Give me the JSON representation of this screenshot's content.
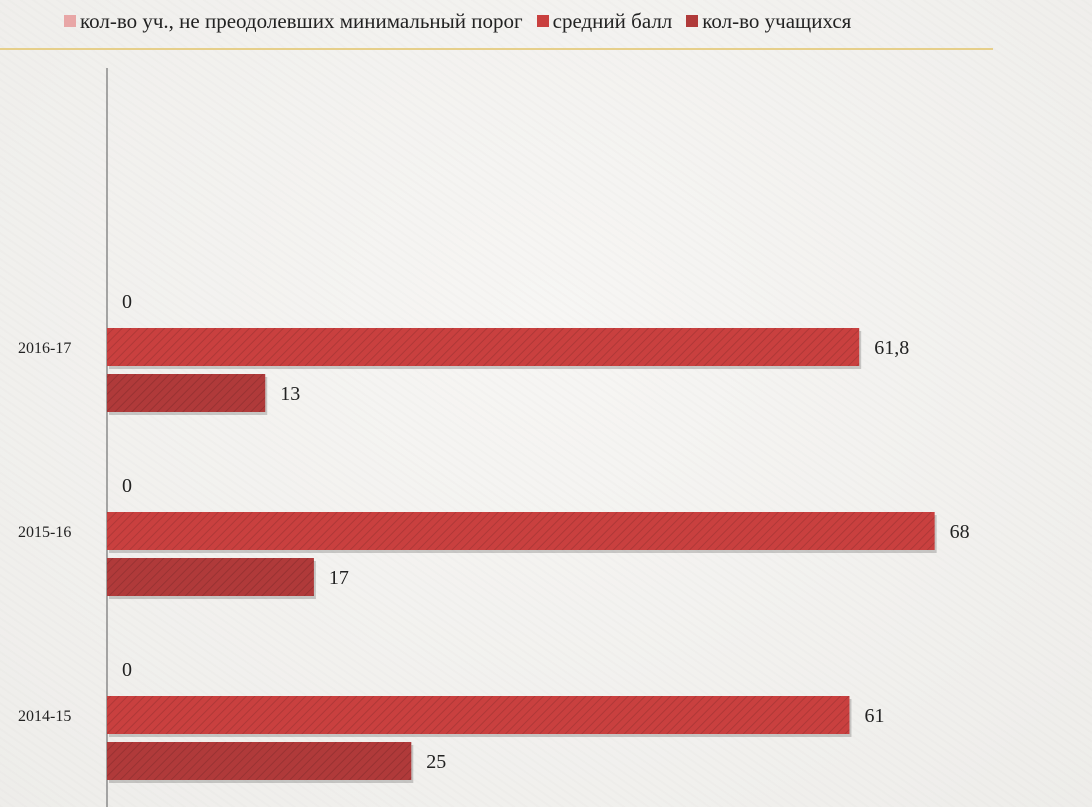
{
  "chart_data": {
    "type": "bar",
    "orientation": "horizontal",
    "categories": [
      "2016-17",
      "2015-16",
      "2014-15"
    ],
    "series": [
      {
        "name": "кол-во уч., не преодолевших минимальный порог",
        "values": [
          0,
          0,
          0
        ],
        "labels": [
          "0",
          "0",
          "0"
        ],
        "color": "#e8a6a6"
      },
      {
        "name": "средний балл",
        "values": [
          61.8,
          68,
          61
        ],
        "labels": [
          "61,8",
          "68",
          "61"
        ],
        "color": "#c9403f"
      },
      {
        "name": "кол-во учащихся",
        "values": [
          13,
          17,
          25
        ],
        "labels": [
          "13",
          "17",
          "25"
        ],
        "color": "#b03a3a"
      }
    ],
    "xlim": [
      0,
      70
    ],
    "grid": false,
    "legend_position": "top"
  }
}
